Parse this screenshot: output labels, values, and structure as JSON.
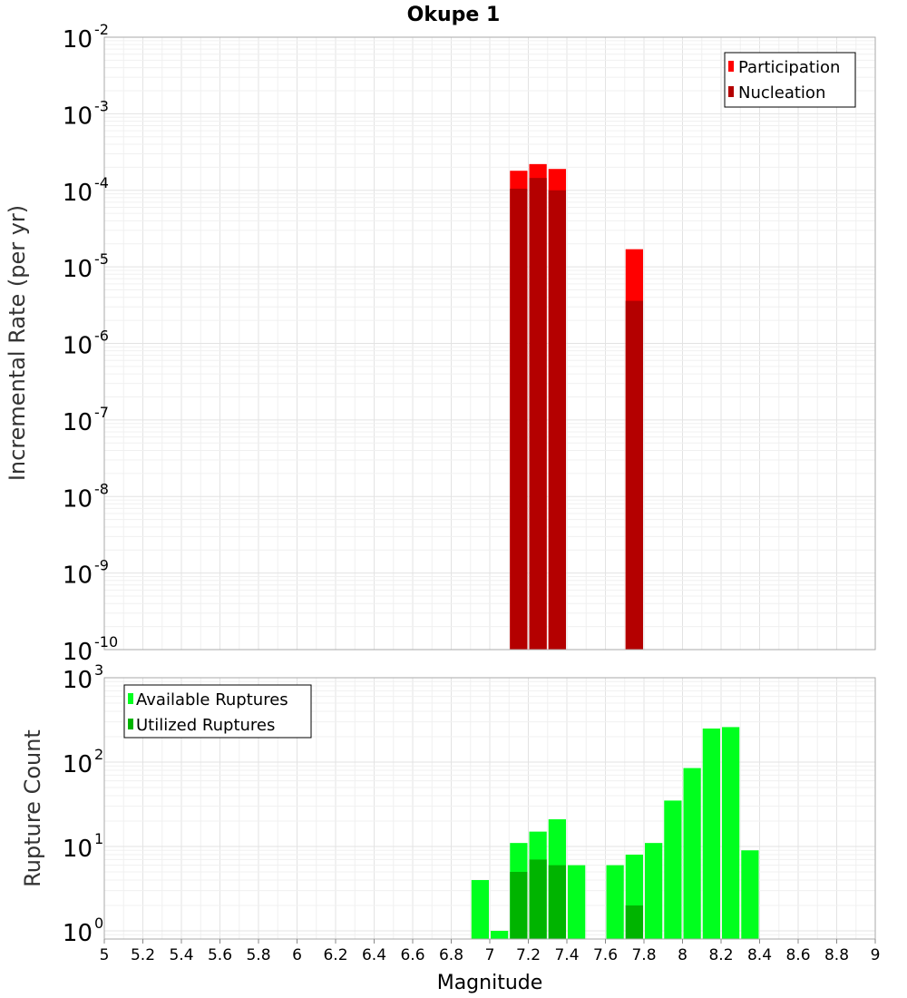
{
  "title": "Okupe 1",
  "chart_data": [
    {
      "type": "bar",
      "scale": "log",
      "ylabel": "Incremental Rate (per yr)",
      "ylim": [
        1e-10,
        0.01
      ],
      "xlim": [
        5,
        9
      ],
      "bar_width": 0.1,
      "grid": true,
      "legend_position": "top-right",
      "ytick_labels": [
        {
          "value": 1e-10,
          "base": "10",
          "exp": "-10"
        },
        {
          "value": 1e-09,
          "base": "10",
          "exp": "-9"
        },
        {
          "value": 1e-08,
          "base": "10",
          "exp": "-8"
        },
        {
          "value": 1e-07,
          "base": "10",
          "exp": "-7"
        },
        {
          "value": 1e-06,
          "base": "10",
          "exp": "-6"
        },
        {
          "value": 1e-05,
          "base": "10",
          "exp": "-5"
        },
        {
          "value": 0.0001,
          "base": "10",
          "exp": "-4"
        },
        {
          "value": 0.001,
          "base": "10",
          "exp": "-3"
        },
        {
          "value": 0.01,
          "base": "10",
          "exp": "-2"
        }
      ],
      "series": [
        {
          "name": "Participation",
          "color": "#ff0000",
          "x": [
            7.15,
            7.25,
            7.35,
            7.75
          ],
          "values": [
            0.00018,
            0.00022,
            0.00019,
            1.7e-05
          ]
        },
        {
          "name": "Nucleation",
          "color": "#b40000",
          "x": [
            7.15,
            7.25,
            7.35,
            7.75
          ],
          "values": [
            0.000105,
            0.000145,
            0.0001,
            3.6e-06
          ]
        }
      ]
    },
    {
      "type": "bar",
      "scale": "log",
      "ylabel": "Rupture Count",
      "xlabel": "Magnitude",
      "ylim": [
        0.8,
        1000
      ],
      "xlim": [
        5,
        9
      ],
      "bar_width": 0.1,
      "grid": true,
      "legend_position": "top-left",
      "ytick_labels": [
        {
          "value": 1,
          "base": "10",
          "exp": "0"
        },
        {
          "value": 10,
          "base": "10",
          "exp": "1"
        },
        {
          "value": 100,
          "base": "10",
          "exp": "2"
        },
        {
          "value": 1000,
          "base": "10",
          "exp": "3"
        }
      ],
      "xticks": [
        "5",
        "5.2",
        "5.4",
        "5.6",
        "5.8",
        "6",
        "6.2",
        "6.4",
        "6.6",
        "6.8",
        "7",
        "7.2",
        "7.4",
        "7.6",
        "7.8",
        "8",
        "8.2",
        "8.4",
        "8.6",
        "8.8",
        "9"
      ],
      "series": [
        {
          "name": "Available Ruptures",
          "color": "#00ff1e",
          "x": [
            6.95,
            7.05,
            7.15,
            7.25,
            7.35,
            7.45,
            7.65,
            7.75,
            7.85,
            7.95,
            8.05,
            8.15,
            8.25,
            8.35
          ],
          "values": [
            4,
            1,
            11,
            15,
            21,
            6,
            6,
            8,
            11,
            35,
            85,
            250,
            260,
            9
          ]
        },
        {
          "name": "Utilized Ruptures",
          "color": "#00b400",
          "x": [
            7.15,
            7.25,
            7.35,
            7.75
          ],
          "values": [
            5,
            7,
            6,
            2
          ]
        }
      ]
    }
  ]
}
